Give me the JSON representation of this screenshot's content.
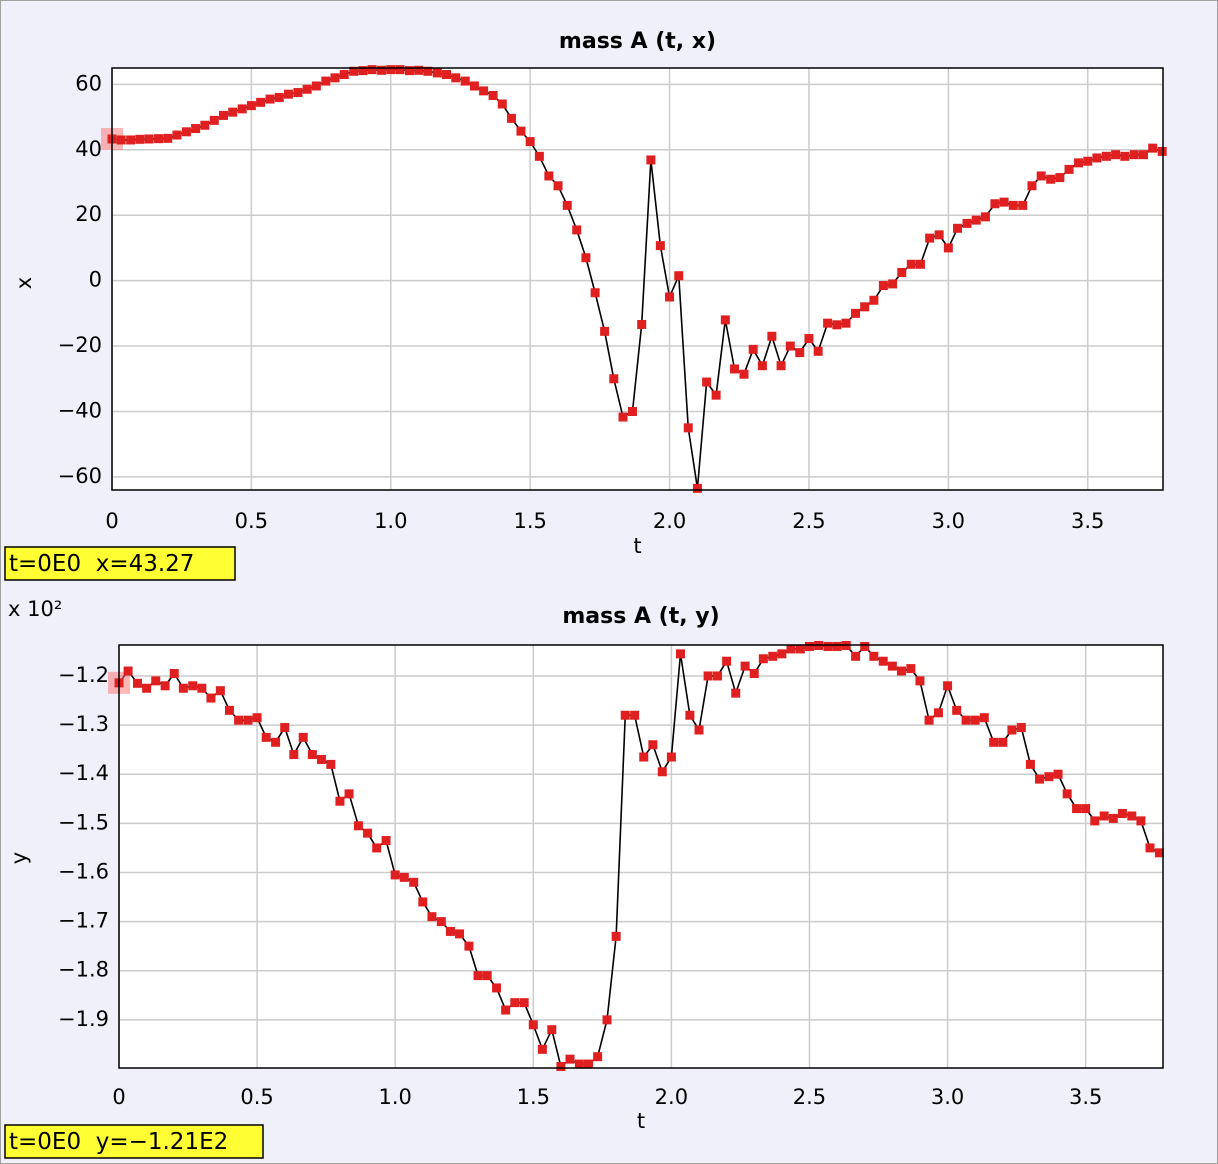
{
  "chart_data": [
    {
      "type": "line",
      "title": "mass A (t, x)",
      "x_label": "t",
      "y_label": "x",
      "readout": "t=0E0  x=43.27",
      "xlim": [
        0,
        3.77
      ],
      "ylim": [
        -64,
        65
      ],
      "grid": true,
      "color": "#000000",
      "marker_color": "#e02020",
      "xticks": [
        0,
        0.5,
        {
          "value": 1,
          "label": "1.0"
        },
        1.5,
        {
          "value": 2,
          "label": "2.0"
        },
        2.5,
        {
          "value": 3,
          "label": "3.0"
        },
        3.5
      ],
      "yticks": [
        60,
        40,
        20,
        0,
        {
          "value": -20,
          "label": "−20"
        },
        {
          "value": -40,
          "label": "−40"
        },
        {
          "value": -60,
          "label": "−60"
        }
      ],
      "x": [
        0,
        0.033,
        0.067,
        0.1,
        0.133,
        0.167,
        0.2,
        0.233,
        0.267,
        0.3,
        0.333,
        0.367,
        0.4,
        0.433,
        0.467,
        0.5,
        0.533,
        0.567,
        0.6,
        0.633,
        0.667,
        0.7,
        0.733,
        0.767,
        0.8,
        0.833,
        0.867,
        0.9,
        0.933,
        0.967,
        1,
        1.033,
        1.067,
        1.1,
        1.133,
        1.167,
        1.2,
        1.233,
        1.267,
        1.3,
        1.333,
        1.367,
        1.4,
        1.433,
        1.467,
        1.5,
        1.533,
        1.567,
        1.6,
        1.633,
        1.667,
        1.7,
        1.733,
        1.767,
        1.8,
        1.833,
        1.867,
        1.9,
        1.933,
        1.967,
        2,
        2.033,
        2.067,
        2.1,
        2.133,
        2.167,
        2.2,
        2.233,
        2.267,
        2.3,
        2.333,
        2.367,
        2.4,
        2.433,
        2.467,
        2.5,
        2.533,
        2.567,
        2.6,
        2.633,
        2.667,
        2.7,
        2.733,
        2.767,
        2.8,
        2.833,
        2.867,
        2.9,
        2.933,
        2.967,
        3,
        3.033,
        3.067,
        3.1,
        3.133,
        3.167,
        3.2,
        3.233,
        3.267,
        3.3,
        3.333,
        3.367,
        3.4,
        3.433,
        3.467,
        3.5,
        3.533,
        3.567,
        3.6,
        3.633,
        3.667,
        3.7,
        3.733,
        3.767
      ],
      "values": [
        43.3,
        43,
        43,
        43.2,
        43.3,
        43.4,
        43.5,
        44.5,
        45.5,
        46.5,
        47.5,
        49,
        50.5,
        51.5,
        52.5,
        53.5,
        54.5,
        55.5,
        56,
        57,
        57.5,
        58.5,
        59.5,
        61,
        62,
        63,
        64,
        64.2,
        64.5,
        64.3,
        64.5,
        64.5,
        64.2,
        64.3,
        64,
        63.5,
        63,
        62,
        61,
        59.5,
        58,
        56.6,
        54,
        49.6,
        45.7,
        42.5,
        38,
        32,
        29,
        23,
        15.5,
        7,
        -3.7,
        -15.5,
        -30,
        -41.7,
        -40,
        -13.4,
        36.9,
        10.7,
        -5,
        1.5,
        -45,
        -63.5,
        -31,
        -35,
        -12,
        -27,
        -28.6,
        -21,
        -26,
        -17,
        -26,
        -20,
        -22,
        -17.7,
        -21.6,
        -13,
        -13.5,
        -13,
        -10,
        -8,
        -6,
        -1.5,
        -1,
        2.5,
        5,
        5,
        13,
        14,
        10,
        16,
        17.5,
        18.5,
        19.5,
        23.5,
        24,
        23,
        23,
        29,
        32,
        31,
        31.5,
        34,
        36,
        36.5,
        37.5,
        38,
        38.5,
        38,
        38.5,
        38.5,
        40.5,
        39.5
      ]
    },
    {
      "type": "line",
      "title": "mass A (t, y)",
      "x_label": "t",
      "y_label": "y",
      "readout": "t=0E0  y=−1.21E2",
      "y_multiplier": "x 10²",
      "xlim": [
        0,
        3.78
      ],
      "ylim": [
        -1.998,
        -1.137
      ],
      "grid": true,
      "color": "#000000",
      "marker_color": "#e02020",
      "xticks": [
        0,
        0.5,
        {
          "value": 1,
          "label": "1.0"
        },
        1.5,
        {
          "value": 2,
          "label": "2.0"
        },
        2.5,
        {
          "value": 3,
          "label": "3.0"
        },
        3.5
      ],
      "yticks": [
        {
          "value": -1.2,
          "label": "−1.2"
        },
        {
          "value": -1.3,
          "label": "−1.3"
        },
        {
          "value": -1.4,
          "label": "−1.4"
        },
        {
          "value": -1.5,
          "label": "−1.5"
        },
        {
          "value": -1.6,
          "label": "−1.6"
        },
        {
          "value": -1.7,
          "label": "−1.7"
        },
        {
          "value": -1.8,
          "label": "−1.8"
        },
        {
          "value": -1.9,
          "label": "−1.9"
        }
      ],
      "x": [
        0,
        0.033,
        0.067,
        0.1,
        0.133,
        0.167,
        0.2,
        0.233,
        0.267,
        0.3,
        0.333,
        0.367,
        0.4,
        0.433,
        0.467,
        0.5,
        0.533,
        0.567,
        0.6,
        0.633,
        0.667,
        0.7,
        0.733,
        0.767,
        0.8,
        0.833,
        0.867,
        0.9,
        0.933,
        0.967,
        1,
        1.033,
        1.067,
        1.1,
        1.133,
        1.167,
        1.2,
        1.233,
        1.267,
        1.3,
        1.333,
        1.367,
        1.4,
        1.433,
        1.467,
        1.5,
        1.533,
        1.567,
        1.6,
        1.633,
        1.667,
        1.7,
        1.733,
        1.767,
        1.8,
        1.833,
        1.867,
        1.9,
        1.933,
        1.967,
        2,
        2.033,
        2.067,
        2.1,
        2.133,
        2.167,
        2.2,
        2.233,
        2.267,
        2.3,
        2.333,
        2.367,
        2.4,
        2.433,
        2.467,
        2.5,
        2.533,
        2.567,
        2.6,
        2.633,
        2.667,
        2.7,
        2.733,
        2.767,
        2.8,
        2.833,
        2.867,
        2.9,
        2.933,
        2.967,
        3,
        3.033,
        3.067,
        3.1,
        3.133,
        3.167,
        3.2,
        3.233,
        3.267,
        3.3,
        3.333,
        3.367,
        3.4,
        3.433,
        3.467,
        3.5,
        3.533,
        3.567,
        3.6,
        3.633,
        3.667,
        3.7,
        3.733,
        3.767
      ],
      "values": [
        -1.214,
        -1.19,
        -1.215,
        -1.225,
        -1.21,
        -1.22,
        -1.195,
        -1.225,
        -1.22,
        -1.225,
        -1.245,
        -1.23,
        -1.27,
        -1.29,
        -1.29,
        -1.285,
        -1.325,
        -1.335,
        -1.305,
        -1.36,
        -1.325,
        -1.36,
        -1.37,
        -1.38,
        -1.455,
        -1.44,
        -1.505,
        -1.52,
        -1.55,
        -1.535,
        -1.605,
        -1.61,
        -1.62,
        -1.66,
        -1.69,
        -1.7,
        -1.72,
        -1.725,
        -1.75,
        -1.81,
        -1.81,
        -1.835,
        -1.88,
        -1.865,
        -1.865,
        -1.91,
        -1.96,
        -1.92,
        -1.995,
        -1.98,
        -1.99,
        -1.99,
        -1.975,
        -1.9,
        -1.73,
        -1.28,
        -1.28,
        -1.365,
        -1.34,
        -1.395,
        -1.365,
        -1.155,
        -1.28,
        -1.31,
        -1.2,
        -1.2,
        -1.17,
        -1.235,
        -1.18,
        -1.195,
        -1.165,
        -1.16,
        -1.155,
        -1.145,
        -1.145,
        -1.14,
        -1.138,
        -1.14,
        -1.14,
        -1.138,
        -1.16,
        -1.14,
        -1.16,
        -1.17,
        -1.18,
        -1.19,
        -1.185,
        -1.21,
        -1.29,
        -1.275,
        -1.22,
        -1.27,
        -1.29,
        -1.29,
        -1.285,
        -1.335,
        -1.335,
        -1.31,
        -1.305,
        -1.38,
        -1.41,
        -1.405,
        -1.4,
        -1.44,
        -1.47,
        -1.47,
        -1.495,
        -1.485,
        -1.49,
        -1.48,
        -1.485,
        -1.495,
        -1.55,
        -1.56
      ]
    }
  ]
}
